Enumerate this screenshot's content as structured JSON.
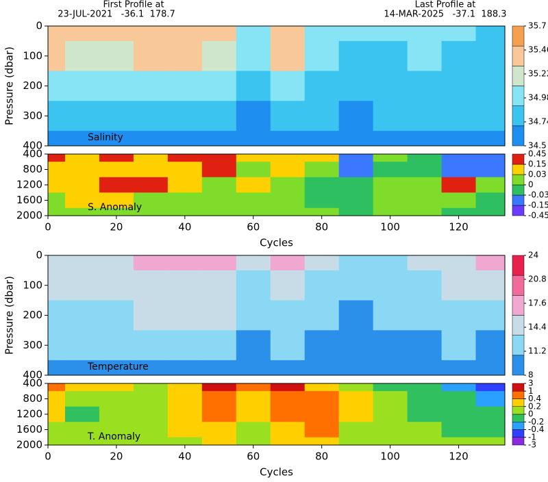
{
  "header": {
    "first_title": "First Profile at",
    "first_info": "23-JUL-2021   -36.1  178.7",
    "last_title": "Last Profile at",
    "last_info": "14-MAR-2025   -37.1  188.3"
  },
  "chart_data": [
    {
      "type": "heatmap",
      "annotation": "Salinity",
      "ylabel": "Pressure (dbar)",
      "xlim": [
        0,
        133.5
      ],
      "ylim": [
        0,
        400
      ],
      "y_inverted": true,
      "yticks": [
        0,
        100,
        200,
        300,
        400
      ],
      "x": [
        0,
        10,
        20,
        30,
        40,
        50,
        60,
        70,
        80,
        90,
        100,
        110,
        120,
        130
      ],
      "y": [
        0,
        100,
        200,
        300,
        400
      ],
      "z": [
        [
          35.6,
          35.5,
          35.55,
          35.6,
          35.6,
          35.55,
          35.2,
          35.6,
          35.1,
          35.0,
          35.0,
          35.05,
          35.0,
          34.95
        ],
        [
          35.5,
          35.3,
          35.4,
          35.5,
          35.5,
          35.45,
          35.0,
          35.5,
          35.0,
          34.95,
          34.95,
          35.0,
          34.95,
          34.9
        ],
        [
          35.1,
          35.0,
          35.1,
          35.15,
          35.2,
          35.1,
          34.85,
          35.1,
          34.85,
          34.8,
          34.85,
          34.85,
          34.9,
          34.85
        ],
        [
          34.85,
          34.8,
          34.85,
          34.9,
          34.9,
          34.85,
          34.7,
          34.85,
          34.75,
          34.7,
          34.75,
          34.8,
          34.75,
          34.75
        ],
        [
          34.7,
          34.65,
          34.7,
          34.7,
          34.7,
          34.7,
          34.6,
          34.7,
          34.6,
          34.6,
          34.6,
          34.65,
          34.6,
          34.6
        ]
      ],
      "colorbar_ticks": [
        34.5,
        34.74,
        34.98,
        35.22,
        35.46,
        35.7
      ],
      "colors": [
        "#1e8ef0",
        "#3cc4f0",
        "#86e4f4",
        "#cfe6cc",
        "#f8c898",
        "#f4a050"
      ]
    },
    {
      "type": "heatmap",
      "annotation": "S. Anomaly",
      "xlim": [
        0,
        133.5
      ],
      "ylim": [
        400,
        2000
      ],
      "y_inverted": true,
      "yticks": [
        400,
        800,
        1200,
        1600,
        2000
      ],
      "xticks": [
        0,
        20,
        40,
        60,
        80,
        100,
        120
      ],
      "xlabel": "Cycles",
      "x": [
        0,
        10,
        20,
        30,
        40,
        50,
        60,
        70,
        80,
        90,
        100,
        110,
        120,
        130
      ],
      "y": [
        400,
        800,
        1200,
        1600,
        2000
      ],
      "z": [
        [
          0.2,
          0.1,
          0.2,
          0.1,
          0.3,
          0.3,
          0.1,
          0.1,
          0.05,
          -0.05,
          0,
          -0.03,
          -0.05,
          -0.1
        ],
        [
          0.1,
          0.05,
          0.04,
          0.05,
          0.08,
          0.15,
          0.02,
          0.05,
          0.01,
          -0.05,
          -0.02,
          -0.03,
          -0.05,
          -0.05
        ],
        [
          0.05,
          0.1,
          0.2,
          0.15,
          0.05,
          0,
          0.03,
          0.02,
          -0.02,
          -0.01,
          0,
          0.01,
          0.2,
          0
        ],
        [
          0.02,
          0.03,
          0.04,
          0.02,
          0.01,
          0,
          0.01,
          0,
          -0.01,
          -0.02,
          0,
          0,
          0,
          -0.01
        ],
        [
          0.01,
          0.02,
          0.01,
          0.02,
          0.01,
          0,
          0.02,
          0.01,
          0,
          -0.01,
          0,
          0,
          -0.01,
          -0.02
        ]
      ],
      "colorbar_ticks": [
        -0.45,
        -0.15,
        -0.03,
        0,
        0.03,
        0.15,
        0.45
      ],
      "colors": [
        "#6a3cff",
        "#3c78ff",
        "#2ec060",
        "#7fdc2a",
        "#ffd000",
        "#e02010"
      ]
    },
    {
      "type": "heatmap",
      "annotation": "Temperature",
      "ylabel": "Pressure (dbar)",
      "xlim": [
        0,
        133.5
      ],
      "ylim": [
        0,
        400
      ],
      "y_inverted": true,
      "yticks": [
        0,
        100,
        200,
        300,
        400
      ],
      "x": [
        0,
        10,
        20,
        30,
        40,
        50,
        60,
        70,
        80,
        90,
        100,
        110,
        120,
        130
      ],
      "y": [
        0,
        100,
        200,
        300,
        400
      ],
      "z": [
        [
          17,
          16.5,
          17.5,
          18.5,
          19,
          19,
          16,
          18,
          15,
          13,
          14,
          15,
          17,
          20
        ],
        [
          16.5,
          15,
          16.5,
          17,
          17.5,
          17,
          14,
          17,
          13,
          12,
          13,
          14,
          15,
          16
        ],
        [
          14,
          13,
          14,
          15,
          16,
          15,
          12,
          14,
          11.5,
          11,
          12,
          12.5,
          13,
          13
        ],
        [
          12,
          11.5,
          12,
          12.5,
          13,
          12.5,
          10.5,
          12,
          10.5,
          10,
          10.5,
          11,
          11.5,
          11
        ],
        [
          10.5,
          10,
          10.5,
          11,
          11,
          11,
          9.5,
          10.5,
          9.5,
          9,
          9.5,
          10,
          10,
          10
        ]
      ],
      "colorbar_ticks": [
        8,
        11.2,
        14.4,
        17.6,
        20.8,
        24
      ],
      "colors": [
        "#2a90ea",
        "#8ad8f4",
        "#c8dce8",
        "#f0a8d0",
        "#f06a9c",
        "#e8204c"
      ]
    },
    {
      "type": "heatmap",
      "annotation": "T. Anomaly",
      "xlim": [
        0,
        133.5
      ],
      "ylim": [
        400,
        2000
      ],
      "y_inverted": true,
      "yticks": [
        400,
        800,
        1200,
        1600,
        2000
      ],
      "xticks": [
        0,
        20,
        40,
        60,
        80,
        100,
        120
      ],
      "xlabel": "Cycles",
      "x": [
        0,
        10,
        20,
        30,
        40,
        50,
        60,
        70,
        80,
        90,
        100,
        110,
        120,
        130
      ],
      "y": [
        400,
        800,
        1200,
        1600,
        2000
      ],
      "z": [
        [
          0.5,
          0.3,
          0.2,
          0.1,
          0.3,
          1,
          0.5,
          1,
          0.3,
          0,
          -0.1,
          -0.2,
          -0.3,
          -0.5
        ],
        [
          0.3,
          0,
          0.1,
          0,
          0.2,
          0.5,
          0.3,
          0.5,
          0.5,
          0.3,
          0,
          -0.1,
          -0.2,
          -0.3
        ],
        [
          0.2,
          -0.1,
          0,
          0.1,
          0.3,
          0.5,
          0.2,
          0.4,
          0.6,
          0.2,
          0,
          -0.1,
          -0.1,
          -0.2
        ],
        [
          0.1,
          0,
          0.05,
          0.1,
          0.2,
          0.3,
          0.1,
          0.3,
          0.5,
          0.1,
          0,
          0,
          -0.05,
          -0.1
        ],
        [
          0,
          0.1,
          0.1,
          0.1,
          0.1,
          0.2,
          0.1,
          0.2,
          0.3,
          0.1,
          0.1,
          0.1,
          0.1,
          0
        ]
      ],
      "colorbar_ticks": [
        -3,
        -1,
        -0.4,
        -0.2,
        0,
        0.2,
        0.4,
        1,
        3
      ],
      "colors": [
        "#8a2be2",
        "#3040ff",
        "#2aa0ff",
        "#30c060",
        "#9be020",
        "#ffd000",
        "#ff7000",
        "#d01010"
      ]
    }
  ]
}
